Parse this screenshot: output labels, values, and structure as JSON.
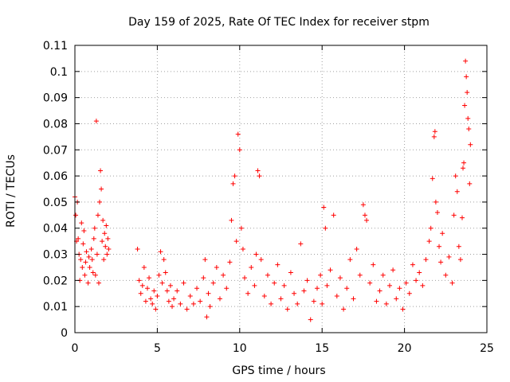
{
  "chart_data": {
    "type": "scatter",
    "title": "Day 159 of 2025, Rate Of TEC Index for receiver stpm",
    "xlabel": "GPS time / hours",
    "ylabel": "ROTI / TECUs",
    "xlim": [
      0,
      25
    ],
    "ylim": [
      0,
      0.11
    ],
    "xticks": [
      0,
      5,
      10,
      15,
      20,
      25
    ],
    "xtick_labels": [
      "0",
      "5",
      "10",
      "15",
      "20",
      "25"
    ],
    "yticks": [
      0,
      0.01,
      0.02,
      0.03,
      0.04,
      0.05,
      0.06,
      0.07,
      0.08,
      0.09,
      0.1,
      0.11
    ],
    "ytick_labels": [
      "0",
      "0.01",
      "0.02",
      "0.03",
      "0.04",
      "0.05",
      "0.06",
      "0.07",
      "0.08",
      "0.09",
      "0.1",
      "0.11"
    ],
    "grid": true,
    "marker": "+",
    "color": "#ff0000",
    "series": [
      {
        "points": [
          [
            0.0,
            0.052
          ],
          [
            0.05,
            0.045
          ],
          [
            0.1,
            0.035
          ],
          [
            0.15,
            0.05
          ],
          [
            0.2,
            0.036
          ],
          [
            0.25,
            0.03
          ],
          [
            0.3,
            0.02
          ],
          [
            0.35,
            0.028
          ],
          [
            0.4,
            0.042
          ],
          [
            0.45,
            0.025
          ],
          [
            0.5,
            0.034
          ],
          [
            0.55,
            0.039
          ],
          [
            0.6,
            0.022
          ],
          [
            0.65,
            0.027
          ],
          [
            0.7,
            0.031
          ],
          [
            0.8,
            0.019
          ],
          [
            0.85,
            0.029
          ],
          [
            0.9,
            0.025
          ],
          [
            1.0,
            0.032
          ],
          [
            1.05,
            0.028
          ],
          [
            1.1,
            0.023
          ],
          [
            1.15,
            0.036
          ],
          [
            1.2,
            0.04
          ],
          [
            1.25,
            0.022
          ],
          [
            1.3,
            0.081
          ],
          [
            1.35,
            0.03
          ],
          [
            1.4,
            0.045
          ],
          [
            1.45,
            0.019
          ],
          [
            1.5,
            0.05
          ],
          [
            1.55,
            0.062
          ],
          [
            1.6,
            0.055
          ],
          [
            1.65,
            0.035
          ],
          [
            1.7,
            0.043
          ],
          [
            1.75,
            0.028
          ],
          [
            1.8,
            0.038
          ],
          [
            1.85,
            0.033
          ],
          [
            1.9,
            0.041
          ],
          [
            1.95,
            0.03
          ],
          [
            2.0,
            0.036
          ],
          [
            2.05,
            0.032
          ],
          [
            3.8,
            0.032
          ],
          [
            3.9,
            0.02
          ],
          [
            4.0,
            0.015
          ],
          [
            4.1,
            0.018
          ],
          [
            4.2,
            0.025
          ],
          [
            4.3,
            0.012
          ],
          [
            4.4,
            0.017
          ],
          [
            4.5,
            0.021
          ],
          [
            4.6,
            0.013
          ],
          [
            4.7,
            0.011
          ],
          [
            4.8,
            0.016
          ],
          [
            4.9,
            0.009
          ],
          [
            5.0,
            0.014
          ],
          [
            5.1,
            0.022
          ],
          [
            5.2,
            0.031
          ],
          [
            5.3,
            0.019
          ],
          [
            5.4,
            0.028
          ],
          [
            5.5,
            0.023
          ],
          [
            5.6,
            0.016
          ],
          [
            5.7,
            0.012
          ],
          [
            5.8,
            0.018
          ],
          [
            5.9,
            0.01
          ],
          [
            6.0,
            0.013
          ],
          [
            6.2,
            0.016
          ],
          [
            6.4,
            0.011
          ],
          [
            6.6,
            0.019
          ],
          [
            6.8,
            0.009
          ],
          [
            7.0,
            0.014
          ],
          [
            7.2,
            0.011
          ],
          [
            7.4,
            0.017
          ],
          [
            7.6,
            0.012
          ],
          [
            7.8,
            0.021
          ],
          [
            7.9,
            0.028
          ],
          [
            8.0,
            0.006
          ],
          [
            8.1,
            0.015
          ],
          [
            8.2,
            0.01
          ],
          [
            8.4,
            0.019
          ],
          [
            8.6,
            0.025
          ],
          [
            8.8,
            0.013
          ],
          [
            9.0,
            0.022
          ],
          [
            9.2,
            0.017
          ],
          [
            9.4,
            0.027
          ],
          [
            9.5,
            0.043
          ],
          [
            9.6,
            0.057
          ],
          [
            9.7,
            0.06
          ],
          [
            9.8,
            0.035
          ],
          [
            9.9,
            0.076
          ],
          [
            10.0,
            0.07
          ],
          [
            10.1,
            0.04
          ],
          [
            10.2,
            0.032
          ],
          [
            10.3,
            0.021
          ],
          [
            10.5,
            0.015
          ],
          [
            10.7,
            0.025
          ],
          [
            10.9,
            0.018
          ],
          [
            11.0,
            0.03
          ],
          [
            11.1,
            0.062
          ],
          [
            11.2,
            0.06
          ],
          [
            11.3,
            0.028
          ],
          [
            11.5,
            0.014
          ],
          [
            11.7,
            0.022
          ],
          [
            11.9,
            0.011
          ],
          [
            12.1,
            0.019
          ],
          [
            12.3,
            0.026
          ],
          [
            12.5,
            0.013
          ],
          [
            12.7,
            0.018
          ],
          [
            12.9,
            0.009
          ],
          [
            13.1,
            0.023
          ],
          [
            13.3,
            0.015
          ],
          [
            13.5,
            0.011
          ],
          [
            13.7,
            0.034
          ],
          [
            13.9,
            0.016
          ],
          [
            14.1,
            0.02
          ],
          [
            14.3,
            0.005
          ],
          [
            14.5,
            0.012
          ],
          [
            14.7,
            0.017
          ],
          [
            14.9,
            0.022
          ],
          [
            15.0,
            0.011
          ],
          [
            15.1,
            0.048
          ],
          [
            15.2,
            0.04
          ],
          [
            15.3,
            0.018
          ],
          [
            15.5,
            0.024
          ],
          [
            15.7,
            0.045
          ],
          [
            15.9,
            0.014
          ],
          [
            16.1,
            0.021
          ],
          [
            16.3,
            0.009
          ],
          [
            16.5,
            0.017
          ],
          [
            16.7,
            0.028
          ],
          [
            16.9,
            0.013
          ],
          [
            17.1,
            0.032
          ],
          [
            17.3,
            0.022
          ],
          [
            17.5,
            0.049
          ],
          [
            17.6,
            0.045
          ],
          [
            17.7,
            0.043
          ],
          [
            17.9,
            0.019
          ],
          [
            18.1,
            0.026
          ],
          [
            18.3,
            0.012
          ],
          [
            18.5,
            0.016
          ],
          [
            18.7,
            0.022
          ],
          [
            18.9,
            0.011
          ],
          [
            19.1,
            0.018
          ],
          [
            19.3,
            0.024
          ],
          [
            19.5,
            0.013
          ],
          [
            19.7,
            0.017
          ],
          [
            19.9,
            0.009
          ],
          [
            20.1,
            0.019
          ],
          [
            20.3,
            0.015
          ],
          [
            20.5,
            0.026
          ],
          [
            20.7,
            0.02
          ],
          [
            20.9,
            0.023
          ],
          [
            21.1,
            0.018
          ],
          [
            21.3,
            0.028
          ],
          [
            21.5,
            0.035
          ],
          [
            21.6,
            0.04
          ],
          [
            21.7,
            0.059
          ],
          [
            21.8,
            0.075
          ],
          [
            21.85,
            0.077
          ],
          [
            21.9,
            0.05
          ],
          [
            22.0,
            0.046
          ],
          [
            22.1,
            0.033
          ],
          [
            22.2,
            0.027
          ],
          [
            22.3,
            0.038
          ],
          [
            22.5,
            0.022
          ],
          [
            22.7,
            0.029
          ],
          [
            22.9,
            0.019
          ],
          [
            23.0,
            0.045
          ],
          [
            23.1,
            0.06
          ],
          [
            23.2,
            0.054
          ],
          [
            23.3,
            0.033
          ],
          [
            23.4,
            0.028
          ],
          [
            23.5,
            0.044
          ],
          [
            23.55,
            0.063
          ],
          [
            23.6,
            0.065
          ],
          [
            23.65,
            0.087
          ],
          [
            23.7,
            0.104
          ],
          [
            23.75,
            0.098
          ],
          [
            23.8,
            0.092
          ],
          [
            23.85,
            0.082
          ],
          [
            23.9,
            0.078
          ],
          [
            23.95,
            0.057
          ],
          [
            24.0,
            0.072
          ]
        ]
      }
    ]
  }
}
